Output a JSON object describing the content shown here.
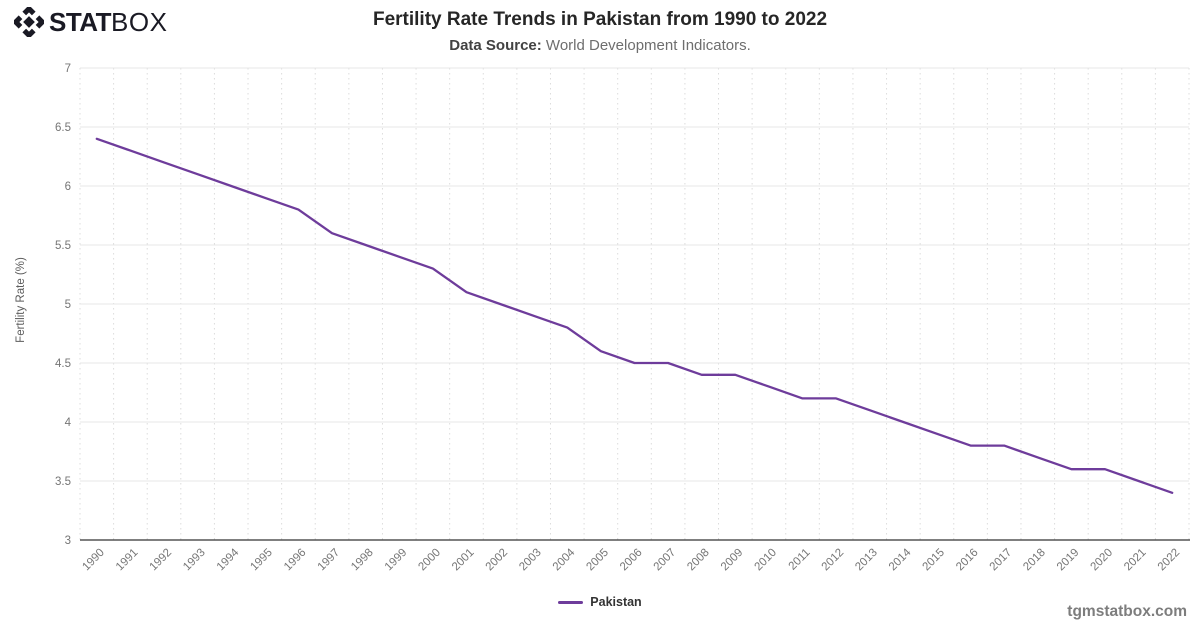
{
  "branding": {
    "logo_stat": "STAT",
    "logo_box": "BOX",
    "logo_color": "#1a1a24",
    "watermark": "tgmstatbox.com"
  },
  "header": {
    "title": "Fertility Rate Trends in Pakistan from 1990 to 2022",
    "source_label": "Data Source:",
    "source_text": " World Development Indicators."
  },
  "legend": {
    "label": "Pakistan",
    "color": "#6e3c9b"
  },
  "chart_data": {
    "type": "line",
    "title": "Fertility Rate Trends in Pakistan from 1990 to 2022",
    "xlabel": "",
    "ylabel": "Fertility Rate (%)",
    "categories": [
      "1990",
      "1991",
      "1992",
      "1993",
      "1994",
      "1995",
      "1996",
      "1997",
      "1998",
      "1999",
      "2000",
      "2001",
      "2002",
      "2003",
      "2004",
      "2005",
      "2006",
      "2007",
      "2008",
      "2009",
      "2010",
      "2011",
      "2012",
      "2013",
      "2014",
      "2015",
      "2016",
      "2017",
      "2018",
      "2019",
      "2020",
      "2021",
      "2022"
    ],
    "series": [
      {
        "name": "Pakistan",
        "color": "#6e3c9b",
        "values": [
          6.4,
          6.3,
          6.2,
          6.1,
          6.0,
          5.9,
          5.8,
          5.6,
          5.5,
          5.4,
          5.3,
          5.1,
          5.0,
          4.9,
          4.8,
          4.6,
          4.5,
          4.5,
          4.4,
          4.4,
          4.3,
          4.2,
          4.2,
          4.1,
          4.0,
          3.9,
          3.8,
          3.8,
          3.7,
          3.6,
          3.6,
          3.5,
          3.4
        ]
      }
    ],
    "ylim": [
      3,
      7
    ],
    "y_ticks": [
      7,
      6.5,
      6,
      5.5,
      5,
      4.5,
      4,
      3.5,
      3
    ],
    "grid": true,
    "legend_position": "bottom-center",
    "colors": {
      "grid_h": "#e7e7e7",
      "grid_v_dotted": "#dcdcdc",
      "axis_line": "#333333",
      "tick_label": "#757575"
    }
  }
}
